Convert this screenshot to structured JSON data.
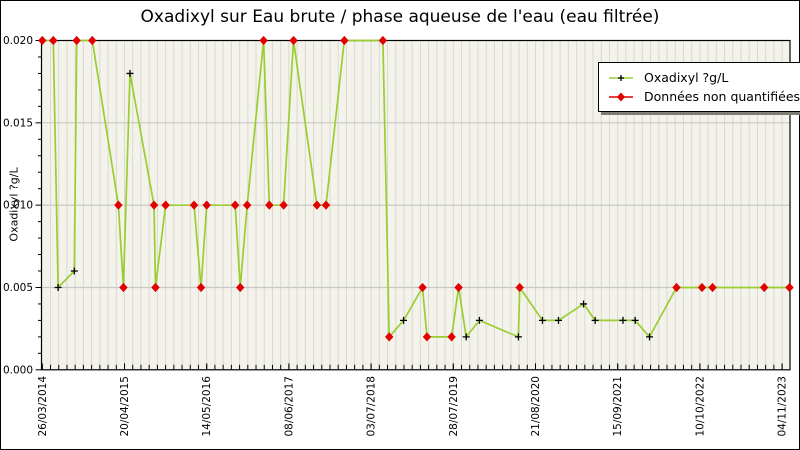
{
  "window": {
    "title": "Oxadixyl sur Eau brute / phase aqueuse de l'eau (eau filtrée)"
  },
  "colors": {
    "series_line": "#9acd32",
    "quantified_marker": "#000000",
    "non_quantified_marker": "#e10000",
    "plot_background": "#f4f3eb",
    "stripe_line": "#d9d9cf",
    "gridline": "#c8c8c8",
    "axis": "#000000",
    "legend_shadow": "#7d7d76"
  },
  "chart_data": {
    "type": "line",
    "title": "Oxadixyl sur Eau brute / phase aqueuse de l'eau (eau filtrée)",
    "xlabel": "",
    "ylabel": "Oxadixyl ?g/L",
    "ylim": [
      0.0,
      0.02
    ],
    "y_ticks": [
      "0.000",
      "0.005",
      "0.010",
      "0.015",
      "0.020"
    ],
    "x_tick_labels": [
      "26/03/2014",
      "20/04/2015",
      "14/05/2016",
      "08/06/2017",
      "03/07/2018",
      "28/07/2019",
      "21/08/2020",
      "15/09/2021",
      "10/10/2022",
      "04/11/2023"
    ],
    "x_minor_divisions_per_major": 10,
    "grid": "horizontal major gridlines, dense vertical minor stripes",
    "legend_position": "top-right",
    "legend": [
      {
        "label": "Oxadixyl ?g/L",
        "marker": "plus",
        "marker_color": "#000000",
        "line_color": "#9acd32"
      },
      {
        "label": "Données non quantifiées",
        "marker": "diamond",
        "marker_color": "#e10000",
        "line_color": "#e10000"
      }
    ],
    "series": [
      {
        "name": "Oxadixyl ?g/L",
        "note": "q=false means the point is shown with a red diamond (donnée non quantifiée); q=true means quantified value shown with a black plus. Dates estimated from axis position.",
        "points": [
          {
            "d": "26/03/2014",
            "v": 0.02,
            "q": false
          },
          {
            "d": "17/05/2014",
            "v": 0.02,
            "q": false
          },
          {
            "d": "09/06/2014",
            "v": 0.005,
            "q": true
          },
          {
            "d": "25/08/2014",
            "v": 0.006,
            "q": true
          },
          {
            "d": "05/09/2014",
            "v": 0.02,
            "q": false
          },
          {
            "d": "18/11/2014",
            "v": 0.02,
            "q": false
          },
          {
            "d": "22/03/2015",
            "v": 0.01,
            "q": false
          },
          {
            "d": "15/04/2015",
            "v": 0.005,
            "q": false
          },
          {
            "d": "16/05/2015",
            "v": 0.018,
            "q": true
          },
          {
            "d": "07/09/2015",
            "v": 0.01,
            "q": false
          },
          {
            "d": "14/09/2015",
            "v": 0.005,
            "q": false
          },
          {
            "d": "01/11/2015",
            "v": 0.01,
            "q": false
          },
          {
            "d": "15/03/2016",
            "v": 0.01,
            "q": false
          },
          {
            "d": "17/04/2016",
            "v": 0.005,
            "q": false
          },
          {
            "d": "14/05/2016",
            "v": 0.01,
            "q": false
          },
          {
            "d": "26/09/2016",
            "v": 0.01,
            "q": false
          },
          {
            "d": "20/10/2016",
            "v": 0.005,
            "q": false
          },
          {
            "d": "22/11/2016",
            "v": 0.01,
            "q": false
          },
          {
            "d": "08/02/2017",
            "v": 0.02,
            "q": false
          },
          {
            "d": "07/03/2017",
            "v": 0.01,
            "q": false
          },
          {
            "d": "14/05/2017",
            "v": 0.01,
            "q": false
          },
          {
            "d": "30/06/2017",
            "v": 0.02,
            "q": false
          },
          {
            "d": "19/10/2017",
            "v": 0.01,
            "q": false
          },
          {
            "d": "01/12/2017",
            "v": 0.01,
            "q": false
          },
          {
            "d": "26/02/2018",
            "v": 0.02,
            "q": false
          },
          {
            "d": "28/08/2018",
            "v": 0.02,
            "q": false
          },
          {
            "d": "27/09/2018",
            "v": 0.002,
            "q": false
          },
          {
            "d": "04/12/2018",
            "v": 0.003,
            "q": true
          },
          {
            "d": "04/03/2019",
            "v": 0.005,
            "q": false
          },
          {
            "d": "25/03/2019",
            "v": 0.002,
            "q": false
          },
          {
            "d": "20/07/2019",
            "v": 0.002,
            "q": false
          },
          {
            "d": "22/08/2019",
            "v": 0.005,
            "q": false
          },
          {
            "d": "27/09/2019",
            "v": 0.002,
            "q": true
          },
          {
            "d": "29/11/2019",
            "v": 0.003,
            "q": true
          },
          {
            "d": "01/06/2020",
            "v": 0.002,
            "q": true
          },
          {
            "d": "07/06/2020",
            "v": 0.005,
            "q": false
          },
          {
            "d": "23/09/2020",
            "v": 0.003,
            "q": true
          },
          {
            "d": "08/12/2020",
            "v": 0.003,
            "q": true
          },
          {
            "d": "06/04/2021",
            "v": 0.004,
            "q": true
          },
          {
            "d": "31/05/2021",
            "v": 0.003,
            "q": true
          },
          {
            "d": "10/10/2021",
            "v": 0.003,
            "q": true
          },
          {
            "d": "07/12/2021",
            "v": 0.003,
            "q": true
          },
          {
            "d": "13/02/2022",
            "v": 0.002,
            "q": true
          },
          {
            "d": "21/06/2022",
            "v": 0.005,
            "q": false
          },
          {
            "d": "20/10/2022",
            "v": 0.005,
            "q": false
          },
          {
            "d": "09/12/2022",
            "v": 0.005,
            "q": false
          },
          {
            "d": "11/08/2023",
            "v": 0.005,
            "q": false
          },
          {
            "d": "09/12/2023",
            "v": 0.005,
            "q": false
          }
        ]
      }
    ]
  }
}
